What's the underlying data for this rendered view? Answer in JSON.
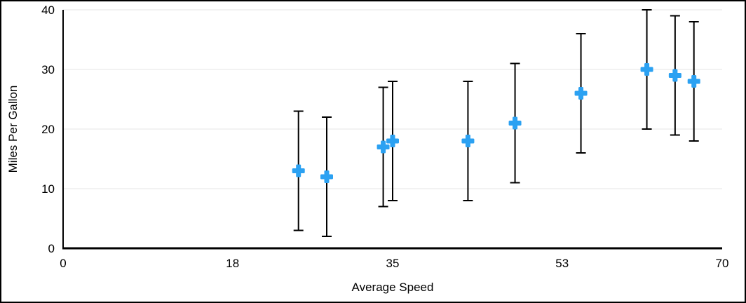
{
  "chart_data": {
    "type": "scatter",
    "title": "",
    "xlabel": "Average Speed",
    "ylabel": "Miles Per Gallon",
    "xlim": [
      0,
      70
    ],
    "ylim": [
      0,
      40
    ],
    "x_ticks": [
      0,
      18,
      35,
      53,
      70
    ],
    "y_ticks": [
      0,
      10,
      20,
      30,
      40
    ],
    "grid": "horizontal-light",
    "legend": "none",
    "marker": "plus",
    "marker_color": "#2BA1F2",
    "gridline_color": "#E4E4E4",
    "axis_color": "#000000",
    "error_bar_color": "#000000",
    "error_bar_type": "symmetric",
    "points": [
      {
        "x": 25,
        "y": 13,
        "err": 10
      },
      {
        "x": 28,
        "y": 12,
        "err": 10
      },
      {
        "x": 34,
        "y": 17,
        "err": 10
      },
      {
        "x": 35,
        "y": 18,
        "err": 10
      },
      {
        "x": 43,
        "y": 18,
        "err": 10
      },
      {
        "x": 48,
        "y": 21,
        "err": 10
      },
      {
        "x": 55,
        "y": 26,
        "err": 10
      },
      {
        "x": 62,
        "y": 30,
        "err": 10
      },
      {
        "x": 65,
        "y": 29,
        "err": 10
      },
      {
        "x": 67,
        "y": 28,
        "err": 10
      }
    ]
  }
}
